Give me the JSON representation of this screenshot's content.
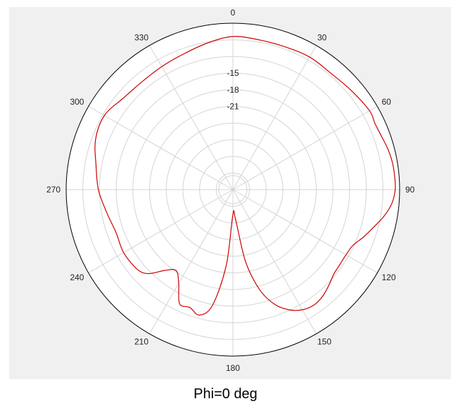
{
  "caption": "Phi=0 deg",
  "colors": {
    "panel_bg": "#f0f0f0",
    "plot_bg": "#ffffff",
    "grid": "#d4d4d4",
    "frame": "#000000",
    "series": "#cc0000"
  },
  "chart_data": {
    "type": "polar-line",
    "title": "Phi=0 deg",
    "angle_ticks": [
      "0",
      "30",
      "60",
      "90",
      "120",
      "150",
      "180",
      "210",
      "240",
      "270",
      "300",
      "330"
    ],
    "radial_tick_labels": [
      "-15",
      "-18",
      "-21"
    ],
    "radial_tick_values": [
      -15,
      -18,
      -21
    ],
    "radial_grid_values": [
      -33,
      -30,
      -27,
      -24,
      -21,
      -18,
      -15,
      -12,
      -9
    ],
    "rlim": [
      -36,
      -6
    ],
    "grid": true,
    "series": [
      {
        "angle_deg": [
          0,
          10,
          20,
          30,
          40,
          50,
          60,
          65,
          70,
          75,
          80,
          85,
          90,
          95,
          100,
          105,
          110,
          115,
          120,
          125,
          130,
          135,
          140,
          145,
          150,
          155,
          160,
          165,
          170,
          175,
          180,
          185,
          190,
          195,
          200,
          205,
          210,
          215,
          220,
          225,
          230,
          240,
          250,
          260,
          270,
          280,
          290,
          300,
          310,
          320,
          330,
          340,
          350,
          360
        ],
        "values": [
          -8.4,
          -8.6,
          -8.6,
          -8.4,
          -8.6,
          -8.2,
          -7.6,
          -7.8,
          -7.6,
          -7.2,
          -6.9,
          -6.8,
          -6.8,
          -7.3,
          -8.4,
          -9.8,
          -11,
          -12.2,
          -12.5,
          -12.5,
          -12.3,
          -11.6,
          -10.9,
          -10.6,
          -11.0,
          -12.1,
          -14.0,
          -17.3,
          -22.8,
          -30.7,
          -31.5,
          -22.3,
          -14.8,
          -12.6,
          -13.4,
          -13.3,
          -16.5,
          -18.2,
          -17.0,
          -14.6,
          -13.6,
          -13.3,
          -13.6,
          -12.9,
          -11.8,
          -11.0,
          -9.7,
          -9.3,
          -10.3,
          -10.6,
          -10.4,
          -10.0,
          -9.2,
          -8.4
        ]
      }
    ]
  }
}
